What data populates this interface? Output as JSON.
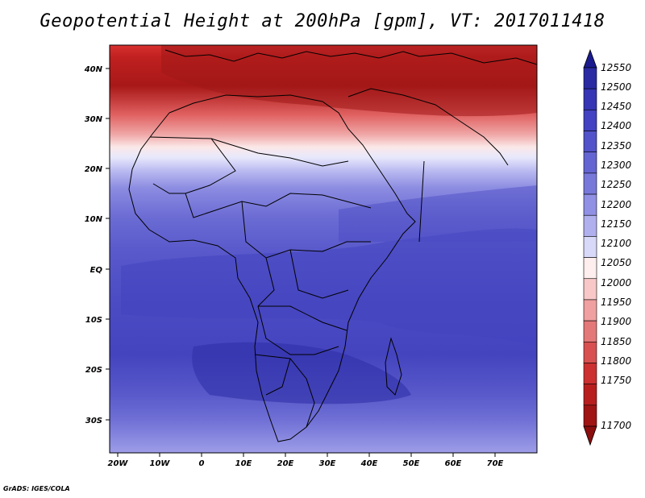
{
  "title": "Geopotential Height at 200hPa [gpm], VT: 2017011418",
  "credit": "GrADS: IGES/COLA",
  "lon_ticks": [
    "20W",
    "10W",
    "0",
    "10E",
    "20E",
    "30E",
    "40E",
    "50E",
    "60E",
    "70E"
  ],
  "lat_ticks": [
    "40N",
    "30N",
    "20N",
    "10N",
    "EQ",
    "10S",
    "20S",
    "30S"
  ],
  "colorbar": {
    "levels": [
      "12550",
      "12500",
      "12450",
      "12400",
      "12350",
      "12300",
      "12250",
      "12200",
      "12150",
      "12100",
      "12050",
      "12000",
      "11950",
      "11900",
      "11850",
      "11800",
      "11750",
      "11700"
    ],
    "colors": [
      "#1b1b8f",
      "#2a2aa3",
      "#3535b5",
      "#4242c2",
      "#5252ca",
      "#6464d2",
      "#7878db",
      "#9090e4",
      "#b0b0ee",
      "#d8d8f8",
      "#ffeeee",
      "#f8c8c8",
      "#f0a0a0",
      "#e47878",
      "#d85050",
      "#cc3030",
      "#b81e1e",
      "#a01414",
      "#8a0e0e"
    ]
  }
}
